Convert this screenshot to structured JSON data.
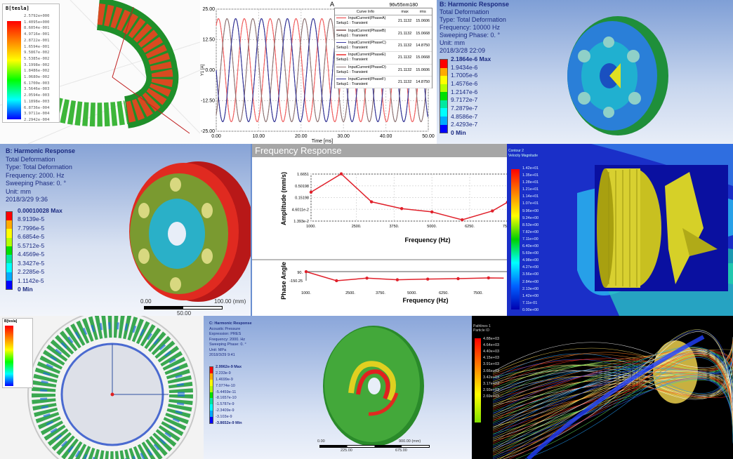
{
  "panel_flux": {
    "legend_title": "B[tesla]",
    "legend_values": [
      "2.5792e+000",
      "1.4095e+000",
      "8.6054e-001",
      "4.9716e-001",
      "2.8722e-001",
      "1.6594e-001",
      "9.5867e-002",
      "5.5385e-002",
      "3.1998e-002",
      "1.8486e-002",
      "1.0680e-002",
      "6.1700e-003",
      "3.5646e-003",
      "2.0594e-003",
      "1.1898e-003",
      "6.8736e-004",
      "3.9711e-004",
      "2.2942e-004"
    ]
  },
  "chart_data": [
    {
      "type": "line",
      "title": "A",
      "subtitle": "96v55nm180",
      "xlabel": "Time [ms]",
      "ylabel": "Y1 [A]",
      "xlim": [
        0,
        50
      ],
      "ylim": [
        -25,
        25
      ],
      "xticks": [
        "0.00",
        "10.00",
        "20.00",
        "30.00",
        "40.00",
        "50.00"
      ],
      "yticks": [
        "25.00",
        "12.50",
        "0.00",
        "-12.50",
        "-25.00"
      ],
      "grid": true,
      "legend_position": "top-right",
      "legend_headers": [
        "Curve Info",
        "max",
        "rms"
      ],
      "amplitude": 21.1132,
      "period_ms": 6.1,
      "series": [
        {
          "name": "InputCurrent(PhaseA)",
          "setup": "Setup1 : Transient",
          "max": "21.1132",
          "rms": "15.0606",
          "color": "#e8383c",
          "phase_deg": 0
        },
        {
          "name": "InputCurrent(PhaseB)",
          "setup": "Setup1 : Transient",
          "max": "21.1132",
          "rms": "15.0668",
          "color": "#9a7d7d",
          "phase_deg": -120
        },
        {
          "name": "InputCurrent(PhaseC)",
          "setup": "Setup1 : Transient",
          "max": "21.1132",
          "rms": "14.8750",
          "color": "#3a3aa0",
          "phase_deg": -240
        },
        {
          "name": "InputCurrent(PhaseE)",
          "setup": "Setup1 : Transient",
          "max": "21.1132",
          "rms": "15.0668",
          "color": "#f06060",
          "phase_deg": 0
        },
        {
          "name": "InputCurrent(PhaseD)",
          "setup": "Setup1 : Transient",
          "max": "21.1132",
          "rms": "15.0606",
          "color": "#8a7070",
          "phase_deg": -120
        },
        {
          "name": "InputCurrent(PhaseF)",
          "setup": "Setup1 : Transient",
          "max": "21.1132",
          "rms": "14.8750",
          "color": "#2c2c90",
          "phase_deg": -240
        }
      ]
    },
    {
      "type": "line",
      "title": "Frequency Response",
      "xlabel": "Frequency (Hz)",
      "ylabel": "Amplitude (mm/s)",
      "yscale": "log",
      "ylim": [
        0.01393,
        1.6651
      ],
      "xlim": [
        1000,
        7500
      ],
      "xticks": [
        "1000.",
        "2500.",
        "3750.",
        "5000.",
        "6250.",
        "7500."
      ],
      "yticks": [
        "1.6651",
        "0.50198",
        "0.15198",
        "4.6011e-2",
        "1.393e-2"
      ],
      "grid": true,
      "color": "#e0202a",
      "x": [
        1000,
        2000,
        3000,
        4000,
        5000,
        6000,
        7000,
        7500
      ],
      "y": [
        0.264,
        1.7,
        0.099,
        0.0495,
        0.0355,
        0.0158,
        0.039,
        0.095
      ]
    },
    {
      "type": "line",
      "xlabel": "Frequency (Hz)",
      "ylabel": "Phase Angle",
      "ylim": [
        -150.25,
        90
      ],
      "xlim": [
        1000,
        7500
      ],
      "xticks": [
        "1000.",
        "2500.",
        "3750.",
        "5000.",
        "6250.",
        "7500."
      ],
      "yticks": [
        "90.",
        "-150.25"
      ],
      "color": "#e0202a",
      "x": [
        1000,
        2000,
        3000,
        4000,
        5000,
        6000,
        7000,
        7500
      ],
      "y": [
        88,
        -150,
        -82,
        -125,
        -107,
        -95,
        -76,
        -82
      ]
    }
  ],
  "panel_harmonic_top": {
    "title": "B: Harmonic Response",
    "lines": [
      "Total Deformation",
      "Type: Total Deformation",
      "Frequency: 10000 Hz",
      "Sweeping Phase: 0. °",
      "Unit: mm",
      "2018/3/28 22:09"
    ],
    "legend_values": [
      "2.1864e-6 Max",
      "1.9434e-6",
      "1.7005e-6",
      "1.4576e-6",
      "1.2147e-6",
      "9.7172e-7",
      "7.2879e-7",
      "4.8586e-7",
      "2.4293e-7",
      "0 Min"
    ]
  },
  "panel_harmonic_mid": {
    "title": "B: Harmonic Response",
    "lines": [
      "Total Deformation",
      "Type: Total Deformation",
      "Frequency: 2000. Hz",
      "Sweeping Phase: 0. °",
      "Unit: mm",
      "2018/3/29 9:36"
    ],
    "legend_values": [
      "0.00010028 Max",
      "8.9139e-5",
      "7.7996e-5",
      "6.6854e-5",
      "5.5712e-5",
      "4.4569e-5",
      "3.3427e-5",
      "2.2285e-5",
      "1.1142e-5",
      "0 Min"
    ],
    "scale": {
      "left": "0.00",
      "right": "100.00 (mm)",
      "mid": "50.00"
    }
  },
  "panel_cfd": {
    "title": "Contour 2",
    "subtitle": "Velocity Magnitude",
    "legend_values": [
      "1.42e+01",
      "1.35e+01",
      "1.28e+01",
      "1.21e+01",
      "1.14e+01",
      "1.07e+01",
      "9.96e+00",
      "9.24e+00",
      "8.53e+00",
      "7.82e+00",
      "7.11e+00",
      "6.40e+00",
      "5.69e+00",
      "4.98e+00",
      "4.27e+00",
      "3.56e+00",
      "2.84e+00",
      "2.13e+00",
      "1.42e+00",
      "7.11e-01",
      "0.00e+00"
    ]
  },
  "panel_ring": {
    "legend_title": "B[tesla]"
  },
  "panel_acoustic": {
    "title": "C: Harmonic Response",
    "lines": [
      "Acoustic Pressure",
      "Expression: PRES",
      "Frequency: 2000. Hz",
      "Sweeping Phase: 0. °",
      "Unit: MPa",
      "2018/3/29 9:41"
    ],
    "legend_values": [
      "2.9962e-9 Max",
      "2.233e-9",
      "1.4699e-9",
      "7.0774e-10",
      "-5.4459e-11",
      "-8.1657e-10",
      "-1.5787e-9",
      "-2.3409e-9",
      "-3.103e-9",
      "-3.8652e-9 Min"
    ],
    "scale": {
      "left": "0.00",
      "right": "900.00 (mm)",
      "q1": "225.00",
      "q3": "675.00"
    }
  },
  "panel_pathlines": {
    "title": "Pathlines 1",
    "subtitle": "Particle ID",
    "legend_values": [
      "4.88e+03",
      "4.64e+03",
      "4.40e+03",
      "4.15e+03",
      "3.91e+03",
      "3.66e+03",
      "3.42e+03",
      "3.17e+03",
      "2.93e+03",
      "2.69e+03"
    ]
  },
  "colors": {
    "ansys_scale": [
      "#ff0000",
      "#ffaa00",
      "#ffff00",
      "#b4ff00",
      "#00e000",
      "#00e8a0",
      "#00ffff",
      "#00aaff",
      "#0000ff"
    ]
  }
}
